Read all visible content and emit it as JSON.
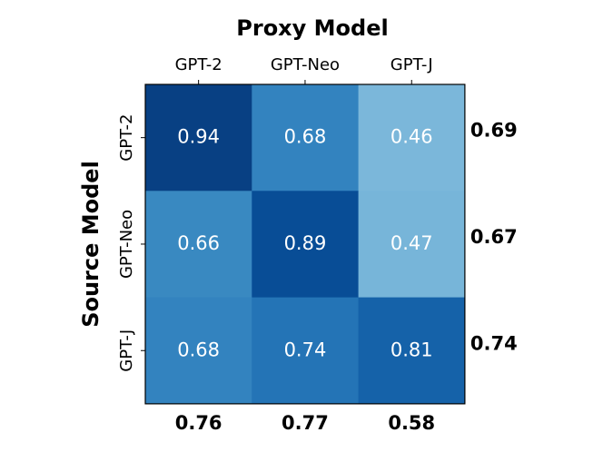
{
  "chart_data": {
    "type": "heatmap",
    "x_label": "Proxy Model",
    "y_label": "Source Model",
    "x_categories": [
      "GPT-2",
      "GPT-Neo",
      "GPT-J"
    ],
    "y_categories": [
      "GPT-2",
      "GPT-Neo",
      "GPT-J"
    ],
    "values": [
      [
        0.94,
        0.68,
        0.46
      ],
      [
        0.66,
        0.89,
        0.47
      ],
      [
        0.68,
        0.74,
        0.81
      ]
    ],
    "row_means": [
      0.69,
      0.67,
      0.74
    ],
    "col_means": [
      0.76,
      0.77,
      0.58
    ],
    "colormap": "Blues",
    "vlim": [
      0,
      1
    ]
  }
}
